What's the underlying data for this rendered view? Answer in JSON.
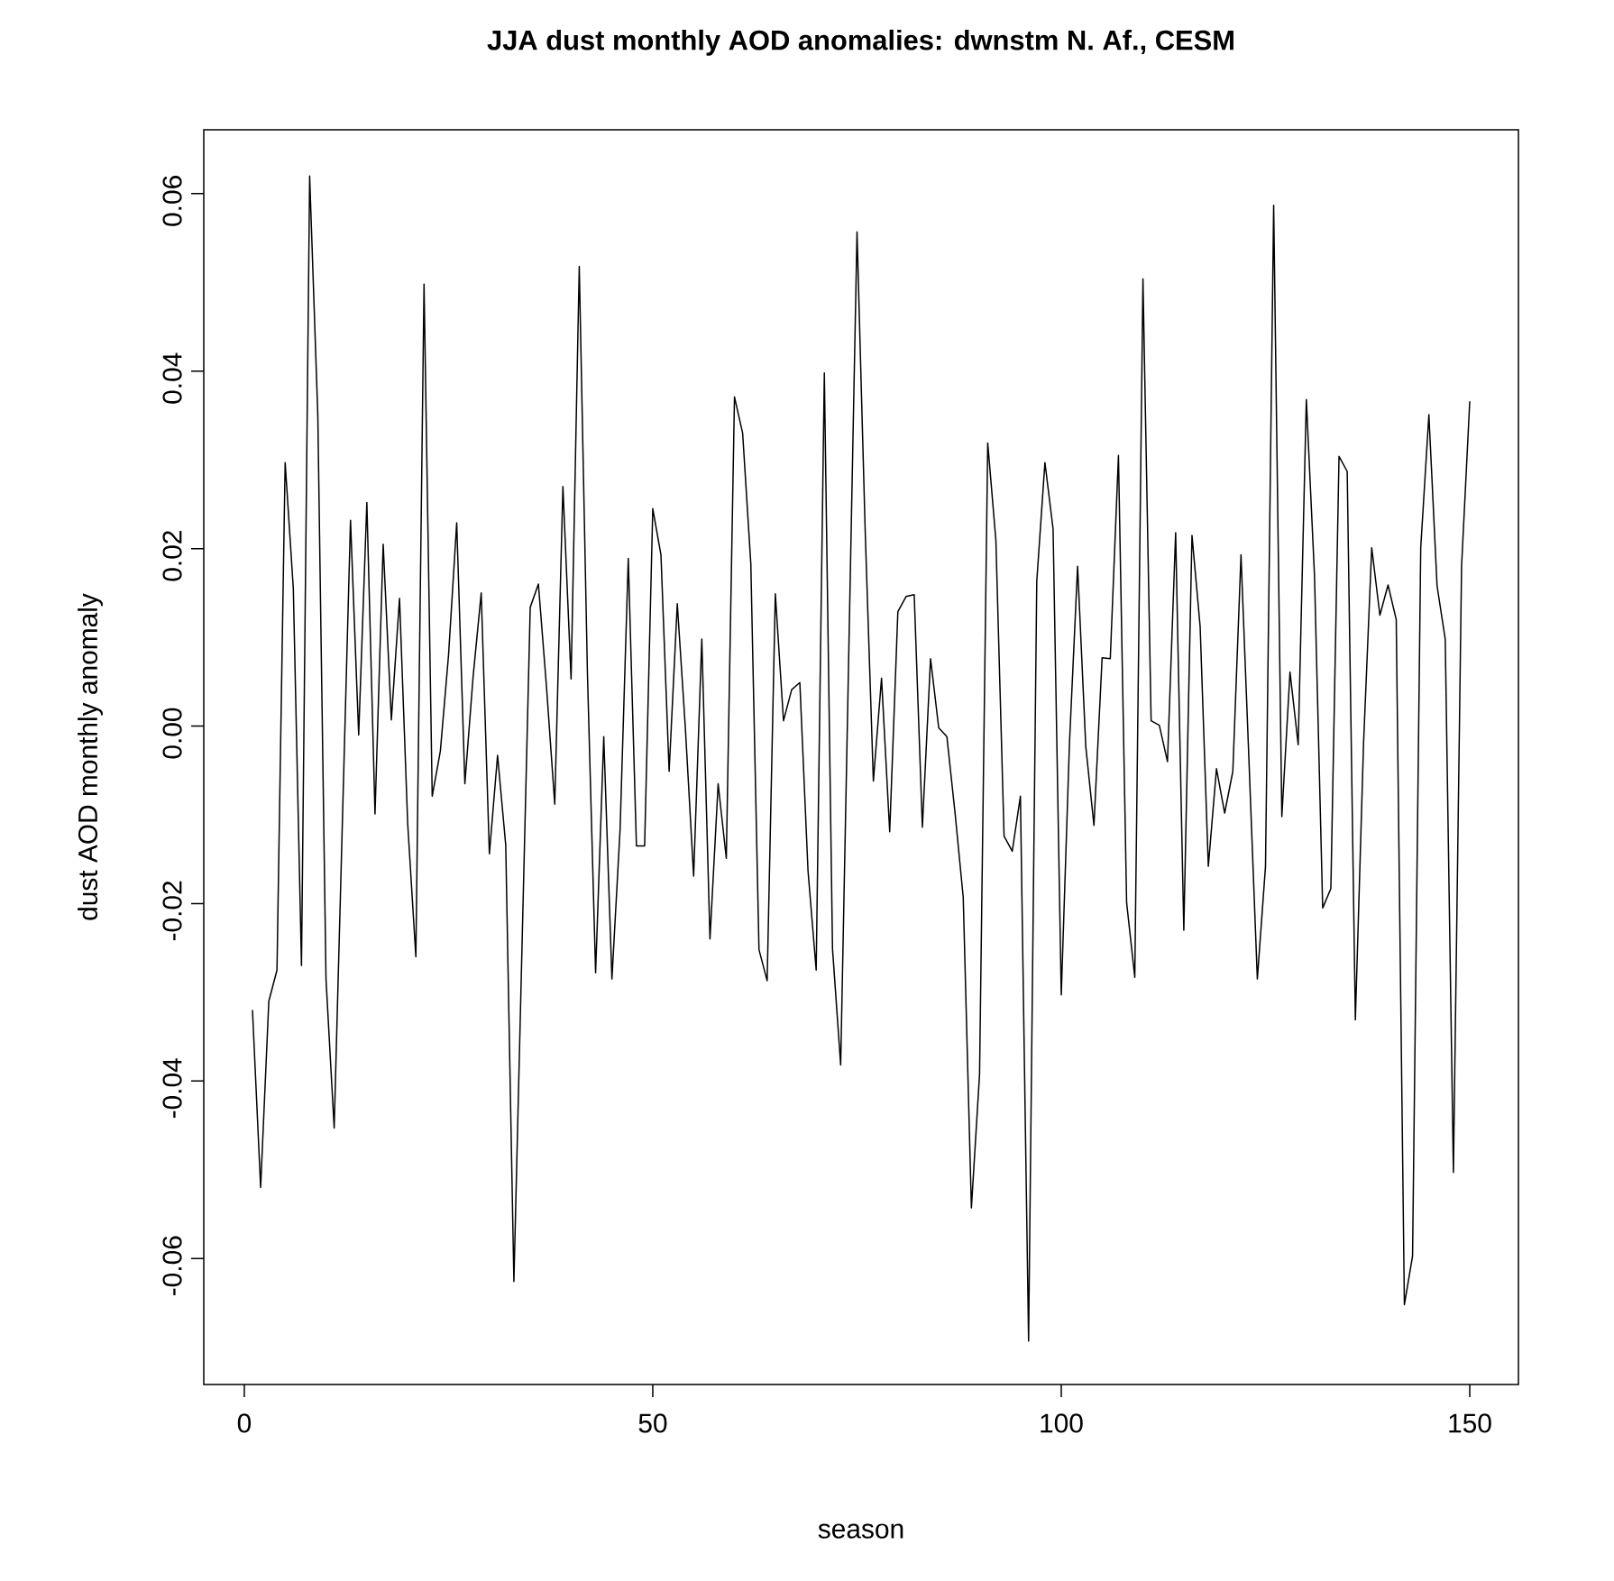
{
  "chart_data": {
    "type": "line",
    "title": "JJA dust monthly AOD anomalies: dwnstm N. Af., CESM",
    "xlabel": "season",
    "ylabel": "dust AOD monthly anomaly",
    "color": "#000000",
    "x": [
      1,
      2,
      3,
      4,
      5,
      6,
      7,
      8,
      9,
      10,
      11,
      12,
      13,
      14,
      15,
      16,
      17,
      18,
      19,
      20,
      21,
      22,
      23,
      24,
      25,
      26,
      27,
      28,
      29,
      30,
      31,
      32,
      33,
      34,
      35,
      36,
      37,
      38,
      39,
      40,
      41,
      42,
      43,
      44,
      45,
      46,
      47,
      48,
      49,
      50,
      51,
      52,
      53,
      54,
      55,
      56,
      57,
      58,
      59,
      60,
      61,
      62,
      63,
      64,
      65,
      66,
      67,
      68,
      69,
      70,
      71,
      72,
      73,
      74,
      75,
      76,
      77,
      78,
      79,
      80,
      81,
      82,
      83,
      84,
      85,
      86,
      87,
      88,
      89,
      90,
      91,
      92,
      93,
      94,
      95,
      96,
      97,
      98,
      99,
      100,
      101,
      102,
      103,
      104,
      105,
      106,
      107,
      108,
      109,
      110,
      111,
      112,
      113,
      114,
      115,
      116,
      117,
      118,
      119,
      120,
      121,
      122,
      123,
      124,
      125,
      126,
      127,
      128,
      129,
      130,
      131,
      132,
      133,
      134,
      135,
      136,
      137,
      138,
      139,
      140,
      141,
      142,
      143,
      144,
      145,
      146,
      147,
      148,
      149,
      150
    ],
    "values": [
      -0.032,
      -0.052,
      -0.031,
      -0.0275,
      0.0297,
      0.0155,
      -0.027,
      0.062,
      0.035,
      -0.0285,
      -0.0453,
      -0.011,
      0.0232,
      -0.001,
      0.0252,
      -0.0099,
      0.0205,
      0.0007,
      0.0144,
      -0.011,
      -0.026,
      0.0498,
      -0.0079,
      -0.0028,
      0.008,
      0.0229,
      -0.0065,
      0.0055,
      0.015,
      -0.0144,
      -0.0033,
      -0.0134,
      -0.0626,
      -0.0246,
      0.0134,
      0.016,
      0.0043,
      -0.0088,
      0.027,
      0.0053,
      0.0518,
      0.006,
      -0.0278,
      -0.0012,
      -0.0285,
      -0.0116,
      0.0189,
      -0.0135,
      -0.0135,
      0.0245,
      0.0193,
      -0.0051,
      0.0138,
      -0.0004,
      -0.0169,
      0.0098,
      -0.024,
      -0.0065,
      -0.0149,
      0.0371,
      0.033,
      0.0183,
      -0.0252,
      -0.0287,
      0.0149,
      0.0006,
      0.0041,
      0.0049,
      -0.0163,
      -0.0275,
      0.0398,
      -0.0251,
      -0.0382,
      0.0087,
      0.0557,
      0.022,
      -0.0062,
      0.0054,
      -0.0119,
      0.0129,
      0.0146,
      0.0148,
      -0.0114,
      0.0076,
      -0.0002,
      -0.0012,
      -0.0098,
      -0.0193,
      -0.0543,
      -0.0392,
      0.0319,
      0.0209,
      -0.0124,
      -0.0141,
      -0.0079,
      -0.0693,
      0.0163,
      0.0297,
      0.0222,
      -0.0303,
      -0.002,
      0.018,
      -0.0023,
      -0.0112,
      0.0077,
      0.0076,
      0.0305,
      -0.0199,
      -0.0283,
      0.0504,
      0.0006,
      0.0001,
      -0.004,
      0.0218,
      -0.023,
      0.0215,
      0.0112,
      -0.0158,
      -0.0048,
      -0.0098,
      -0.0051,
      0.0193,
      -0.0045,
      -0.0285,
      -0.0158,
      0.0587,
      -0.0102,
      0.0061,
      -0.0021,
      0.0368,
      0.0169,
      -0.0205,
      -0.0183,
      0.0304,
      0.0287,
      -0.0331,
      -0.002,
      0.0201,
      0.0125,
      0.0159,
      0.012,
      -0.0652,
      -0.0597,
      0.0201,
      0.0351,
      0.0158,
      0.0098,
      -0.0503,
      0.018,
      0.0366
    ],
    "xlim": [
      -4.96,
      155.96
    ],
    "ylim": [
      -0.0742,
      0.0672
    ],
    "xticks": [
      0,
      50,
      100,
      150
    ],
    "yticks": [
      {
        "value": -0.06,
        "label": "-0.06"
      },
      {
        "value": -0.04,
        "label": "-0.04"
      },
      {
        "value": -0.02,
        "label": "-0.02"
      },
      {
        "value": 0,
        "label": "0.00"
      },
      {
        "value": 0.02,
        "label": "0.02"
      },
      {
        "value": 0.04,
        "label": "0.04"
      },
      {
        "value": 0.06,
        "label": "0.06"
      }
    ]
  }
}
